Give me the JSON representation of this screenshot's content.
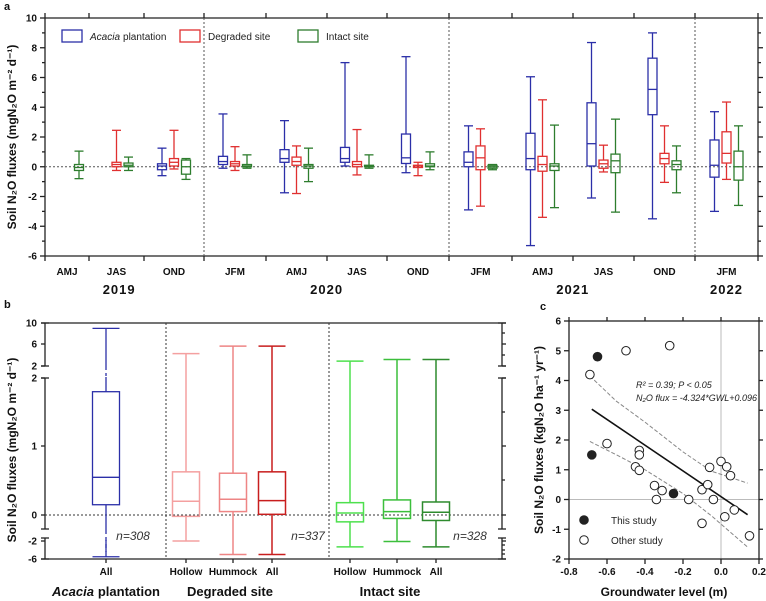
{
  "chart_data": [
    {
      "panel": "a",
      "type": "box",
      "ylabel": "Soil N₂O fluxes (mgN₂O m⁻² d⁻¹)",
      "ylim": [
        -6,
        10
      ],
      "yticks": [
        -6,
        -4,
        -2,
        0,
        2,
        4,
        6,
        8,
        10
      ],
      "colors": {
        "acacia": "#2b2fa8",
        "degraded": "#e03030",
        "intact": "#2e7d2e"
      },
      "legend": [
        {
          "key": "acacia",
          "label_italic": "Acacia",
          "label": " plantation"
        },
        {
          "key": "degraded",
          "label_italic": "",
          "label": "Degraded site"
        },
        {
          "key": "intact",
          "label_italic": "",
          "label": "Intact site"
        }
      ],
      "years": [
        "2019",
        "2020",
        "2021",
        "2022"
      ],
      "categories": [
        {
          "label": "AMJ",
          "year": "2019",
          "boxes": {
            "intact": [
              -0.8,
              -0.25,
              -0.05,
              0.15,
              1.05
            ]
          }
        },
        {
          "label": "JAS",
          "year": "2019",
          "boxes": {
            "degraded": [
              -0.25,
              0.0,
              0.15,
              0.3,
              2.45
            ],
            "intact": [
              -0.25,
              0.0,
              0.1,
              0.25,
              0.65
            ]
          }
        },
        {
          "label": "OND",
          "year": "2019",
          "boxes": {
            "acacia": [
              -0.6,
              -0.2,
              0.05,
              0.2,
              1.25
            ],
            "degraded": [
              -0.15,
              0.05,
              0.3,
              0.55,
              2.45
            ],
            "intact": [
              -0.85,
              -0.5,
              0.0,
              0.45,
              0.55
            ]
          }
        },
        {
          "label": "JFM",
          "year": "2020",
          "boxes": {
            "acacia": [
              -0.1,
              0.15,
              0.35,
              0.7,
              3.55
            ],
            "degraded": [
              -0.25,
              0.05,
              0.2,
              0.35,
              1.35
            ],
            "intact": [
              -0.1,
              0.0,
              0.05,
              0.15,
              0.8
            ]
          }
        },
        {
          "label": "AMJ",
          "year": "2020",
          "boxes": {
            "acacia": [
              -1.75,
              0.3,
              0.55,
              1.15,
              3.1
            ],
            "degraded": [
              -1.8,
              0.1,
              0.35,
              0.65,
              1.4
            ],
            "intact": [
              -1.0,
              -0.1,
              0.05,
              0.15,
              1.25
            ]
          }
        },
        {
          "label": "JAS",
          "year": "2020",
          "boxes": {
            "acacia": [
              0.05,
              0.3,
              0.55,
              1.3,
              7.0
            ],
            "degraded": [
              -0.55,
              0.0,
              0.15,
              0.35,
              2.5
            ],
            "intact": [
              -0.1,
              0.0,
              0.05,
              0.1,
              0.8
            ]
          }
        },
        {
          "label": "OND",
          "year": "2020",
          "boxes": {
            "acacia": [
              -0.4,
              0.22,
              0.6,
              2.2,
              7.4
            ],
            "degraded": [
              -0.6,
              -0.05,
              0.05,
              0.1,
              0.3
            ],
            "intact": [
              -0.2,
              0.0,
              0.05,
              0.2,
              1.0
            ]
          }
        },
        {
          "label": "JFM",
          "year": "2021",
          "boxes": {
            "acacia": [
              -2.9,
              0.0,
              0.3,
              1.0,
              2.75
            ],
            "degraded": [
              -2.65,
              -0.2,
              0.6,
              1.4,
              2.55
            ],
            "intact": [
              -0.2,
              -0.1,
              0.0,
              0.1,
              0.15
            ]
          }
        },
        {
          "label": "AMJ",
          "year": "2021",
          "boxes": {
            "acacia": [
              -5.3,
              -0.2,
              0.55,
              2.25,
              6.05
            ],
            "degraded": [
              -3.4,
              -0.3,
              0.15,
              0.7,
              4.5
            ],
            "intact": [
              -2.75,
              -0.25,
              0.05,
              0.2,
              2.8
            ]
          }
        },
        {
          "label": "JAS",
          "year": "2021",
          "boxes": {
            "acacia": [
              -2.1,
              0.05,
              1.55,
              4.3,
              8.35
            ],
            "degraded": [
              -0.35,
              -0.1,
              0.2,
              0.45,
              1.45
            ],
            "intact": [
              -3.05,
              -0.4,
              0.4,
              0.85,
              3.2
            ]
          }
        },
        {
          "label": "OND",
          "year": "2021",
          "boxes": {
            "acacia": [
              -3.5,
              3.5,
              5.2,
              7.3,
              9.0
            ],
            "degraded": [
              -1.05,
              0.2,
              0.55,
              0.9,
              2.75
            ],
            "intact": [
              -1.75,
              -0.2,
              0.15,
              0.4,
              1.4
            ]
          }
        },
        {
          "label": "JFM",
          "year": "2022",
          "boxes": {
            "acacia": [
              -3.0,
              -0.7,
              0.1,
              1.8,
              3.7
            ],
            "degraded": [
              -0.85,
              0.25,
              0.9,
              2.35,
              4.35
            ],
            "intact": [
              -2.6,
              -0.9,
              0.0,
              1.05,
              2.75
            ]
          }
        }
      ]
    },
    {
      "panel": "b",
      "type": "box",
      "ylabel": "Soil N₂O fluxes (mgN₂O m⁻² d⁻¹)",
      "ytick_labels": [
        "10",
        "6",
        "2",
        "2",
        "1",
        "0",
        "-2",
        "-6"
      ],
      "groups": [
        {
          "label_italic": "Acacia",
          "label": " plantation",
          "n": "n=308",
          "boxes": [
            {
              "label": "All",
              "color": "#2b2fa8",
              "stats": [
                -5.5,
                0.15,
                0.55,
                1.8,
                9.0
              ]
            }
          ]
        },
        {
          "label_italic": "",
          "label": "Degraded site",
          "n": "n=337",
          "boxes": [
            {
              "label": "Hollow",
              "color": "#f4a0a0",
              "stats": [
                -2.0,
                -0.02,
                0.2,
                0.63,
                4.3
              ]
            },
            {
              "label": "Hummock",
              "color": "#ee8585",
              "stats": [
                -5.0,
                0.05,
                0.23,
                0.61,
                5.7
              ]
            },
            {
              "label": "All",
              "color": "#c81e1e",
              "stats": [
                -5.0,
                0.01,
                0.21,
                0.63,
                5.7
              ]
            }
          ]
        },
        {
          "label_italic": "",
          "label": "Intact site",
          "n": "n=328",
          "boxes": [
            {
              "label": "Hollow",
              "color": "#4ee04e",
              "stats": [
                -3.3,
                -0.1,
                0.03,
                0.18,
                2.9
              ]
            },
            {
              "label": "Hummock",
              "color": "#3cbf3c",
              "stats": [
                -2.1,
                -0.05,
                0.05,
                0.22,
                3.2
              ]
            },
            {
              "label": "All",
              "color": "#2e8b2e",
              "stats": [
                -3.3,
                -0.08,
                0.04,
                0.19,
                3.2
              ]
            }
          ]
        }
      ]
    },
    {
      "panel": "c",
      "type": "scatter",
      "xlabel": "Groundwater level (m)",
      "ylabel": "Soil N₂O fluxes (kgN₂O ha⁻¹ yr⁻¹)",
      "xlim": [
        -0.8,
        0.2
      ],
      "ylim": [
        -2,
        6
      ],
      "xticks": [
        "-0.8",
        "-0.6",
        "-0.4",
        "-0.2",
        "0.0",
        "0.2"
      ],
      "yticks": [
        "-2",
        "-1",
        "0",
        "1",
        "2",
        "3",
        "4",
        "5",
        "6"
      ],
      "annotation_1": "R² = 0.39; P < 0.05",
      "annotation_2": "N₂O flux = -4.324*GWL+0.096",
      "regression": {
        "slope": -4.324,
        "intercept": 0.096,
        "x_range": [
          -0.68,
          0.14
        ]
      },
      "ci_upper": [
        [
          -0.69,
          4.15
        ],
        [
          -0.55,
          3.3
        ],
        [
          -0.4,
          2.6
        ],
        [
          -0.2,
          1.6
        ],
        [
          -0.05,
          0.95
        ],
        [
          0.14,
          0.55
        ]
      ],
      "ci_lower": [
        [
          -0.69,
          1.95
        ],
        [
          -0.55,
          1.5
        ],
        [
          -0.4,
          1.0
        ],
        [
          -0.2,
          0.2
        ],
        [
          -0.05,
          -0.55
        ],
        [
          0.14,
          -1.6
        ]
      ],
      "series": [
        {
          "name": "This study",
          "filled": true,
          "points": [
            [
              -0.65,
              4.8
            ],
            [
              -0.68,
              1.5
            ],
            [
              -0.25,
              0.2
            ]
          ]
        },
        {
          "name": "Other study",
          "filled": false,
          "points": [
            [
              -0.69,
              4.2
            ],
            [
              -0.5,
              5.0
            ],
            [
              -0.27,
              5.17
            ],
            [
              -0.6,
              1.88
            ],
            [
              -0.43,
              1.65
            ],
            [
              -0.43,
              1.5
            ],
            [
              -0.45,
              1.1
            ],
            [
              -0.43,
              0.98
            ],
            [
              -0.35,
              0.47
            ],
            [
              -0.34,
              0.0
            ],
            [
              -0.31,
              0.3
            ],
            [
              -0.17,
              0.0
            ],
            [
              -0.1,
              0.33
            ],
            [
              -0.1,
              -0.8
            ],
            [
              -0.07,
              0.5
            ],
            [
              -0.06,
              1.08
            ],
            [
              -0.04,
              0.0
            ],
            [
              0.0,
              1.28
            ],
            [
              0.03,
              1.1
            ],
            [
              0.05,
              0.8
            ],
            [
              0.02,
              -0.58
            ],
            [
              0.07,
              -0.35
            ],
            [
              0.15,
              -1.22
            ]
          ]
        }
      ]
    }
  ],
  "panel_labels": [
    "a",
    "b",
    "c"
  ]
}
